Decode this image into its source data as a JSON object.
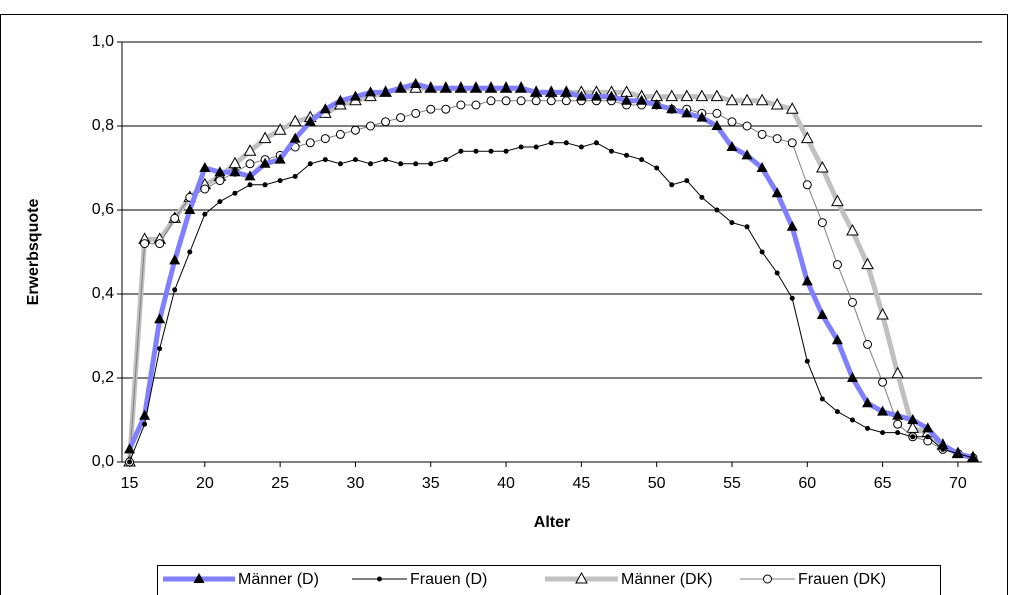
{
  "chart_data": {
    "type": "line",
    "x_label": "Alter",
    "y_label": "Erwerbsquote",
    "x": [
      15,
      16,
      17,
      18,
      19,
      20,
      21,
      22,
      23,
      24,
      25,
      26,
      27,
      28,
      29,
      30,
      31,
      32,
      33,
      34,
      35,
      36,
      37,
      38,
      39,
      40,
      41,
      42,
      43,
      44,
      45,
      46,
      47,
      48,
      49,
      50,
      51,
      52,
      53,
      54,
      55,
      56,
      57,
      58,
      59,
      60,
      61,
      62,
      63,
      64,
      65,
      66,
      67,
      68,
      69,
      70,
      71
    ],
    "xlim": [
      14.5,
      71.6
    ],
    "xticks": [
      15,
      20,
      25,
      30,
      35,
      40,
      45,
      50,
      55,
      60,
      65,
      70
    ],
    "ylim": [
      0,
      1
    ],
    "yticks": [
      {
        "value": 0,
        "label": "0,0"
      },
      {
        "value": 0.2,
        "label": "0,2"
      },
      {
        "value": 0.4,
        "label": "0,4"
      },
      {
        "value": 0.6,
        "label": "0,6"
      },
      {
        "value": 0.8,
        "label": "0,8"
      },
      {
        "value": 1,
        "label": "1,0"
      }
    ],
    "grid": true,
    "legend": "bottom",
    "series": [
      {
        "name": "Männer (D)",
        "color": "#7f7fff",
        "marker": "triangle-filled",
        "values": [
          0.03,
          0.11,
          0.34,
          0.48,
          0.6,
          0.7,
          0.69,
          0.69,
          0.68,
          0.71,
          0.72,
          0.77,
          0.81,
          0.84,
          0.86,
          0.87,
          0.88,
          0.88,
          0.89,
          0.9,
          0.89,
          0.89,
          0.89,
          0.89,
          0.89,
          0.89,
          0.89,
          0.88,
          0.88,
          0.88,
          0.87,
          0.87,
          0.87,
          0.86,
          0.86,
          0.85,
          0.84,
          0.83,
          0.82,
          0.8,
          0.75,
          0.73,
          0.7,
          0.64,
          0.56,
          0.43,
          0.35,
          0.29,
          0.2,
          0.14,
          0.12,
          0.11,
          0.1,
          0.08,
          0.04,
          0.02,
          0.01
        ]
      },
      {
        "name": "Frauen (D)",
        "color": "#000000",
        "marker": "dot",
        "values": [
          0.0,
          0.09,
          0.27,
          0.41,
          0.5,
          0.59,
          0.62,
          0.64,
          0.66,
          0.66,
          0.67,
          0.68,
          0.71,
          0.72,
          0.71,
          0.72,
          0.71,
          0.72,
          0.71,
          0.71,
          0.71,
          0.72,
          0.74,
          0.74,
          0.74,
          0.74,
          0.75,
          0.75,
          0.76,
          0.76,
          0.75,
          0.76,
          0.74,
          0.73,
          0.72,
          0.7,
          0.66,
          0.67,
          0.63,
          0.6,
          0.57,
          0.56,
          0.5,
          0.45,
          0.39,
          0.24,
          0.15,
          0.12,
          0.1,
          0.08,
          0.07,
          0.07,
          0.06,
          0.06,
          0.03,
          0.02,
          0.01
        ]
      },
      {
        "name": "Männer (DK)",
        "color": "#c0c0c0",
        "marker": "triangle-open",
        "values": [
          0.0,
          0.53,
          0.53,
          0.58,
          0.63,
          0.66,
          0.68,
          0.71,
          0.74,
          0.77,
          0.79,
          0.81,
          0.82,
          0.83,
          0.85,
          0.86,
          0.87,
          0.88,
          0.89,
          0.89,
          0.89,
          0.89,
          0.89,
          0.89,
          0.89,
          0.89,
          0.89,
          0.88,
          0.88,
          0.88,
          0.88,
          0.88,
          0.88,
          0.88,
          0.87,
          0.87,
          0.87,
          0.87,
          0.87,
          0.87,
          0.86,
          0.86,
          0.86,
          0.85,
          0.84,
          0.77,
          0.7,
          0.62,
          0.55,
          0.47,
          0.35,
          0.21,
          0.08,
          0.07,
          0.04,
          0.02,
          0.01
        ]
      },
      {
        "name": "Frauen (DK)",
        "color": "#808080",
        "marker": "circle-open",
        "values": [
          0.0,
          0.52,
          0.52,
          0.58,
          0.63,
          0.65,
          0.67,
          0.69,
          0.71,
          0.72,
          0.73,
          0.75,
          0.76,
          0.77,
          0.78,
          0.79,
          0.8,
          0.81,
          0.82,
          0.83,
          0.84,
          0.84,
          0.85,
          0.85,
          0.86,
          0.86,
          0.86,
          0.86,
          0.86,
          0.86,
          0.86,
          0.86,
          0.86,
          0.85,
          0.85,
          0.85,
          0.84,
          0.84,
          0.83,
          0.83,
          0.81,
          0.8,
          0.78,
          0.77,
          0.76,
          0.66,
          0.57,
          0.47,
          0.38,
          0.28,
          0.19,
          0.09,
          0.06,
          0.05,
          0.03,
          0.02,
          0.01
        ]
      }
    ]
  }
}
